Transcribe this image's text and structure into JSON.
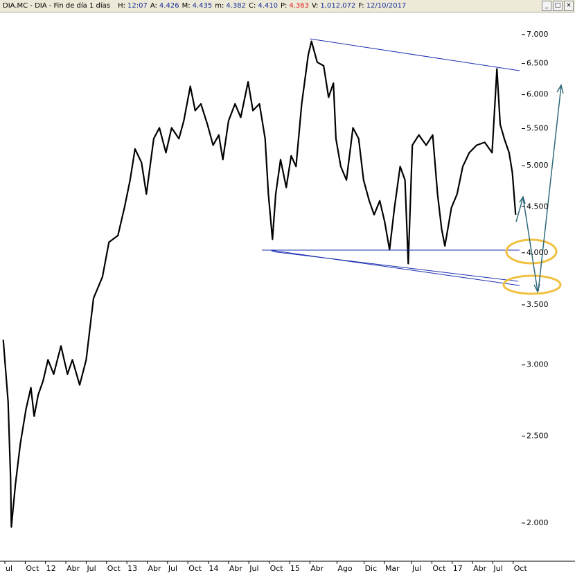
{
  "header": {
    "title": "DIA.MC - DIA - Fin de día 1 días",
    "items": [
      {
        "label": "H:",
        "value": "12:07"
      },
      {
        "label": "A:",
        "value": "4.426"
      },
      {
        "label": "M:",
        "value": "4.435"
      },
      {
        "label": "m:",
        "value": "4.382"
      },
      {
        "label": "C:",
        "value": "4.410"
      },
      {
        "label": "P:",
        "value": "4.363"
      },
      {
        "label": "V:",
        "value": "1,012,072"
      },
      {
        "label": "F:",
        "value": "12/10/2017"
      }
    ]
  },
  "chart_data": {
    "type": "line",
    "log": true,
    "color": "#000000",
    "grid": false,
    "x": [
      2011.48,
      2011.54,
      2011.57,
      2011.58,
      2011.63,
      2011.69,
      2011.76,
      2011.82,
      2011.86,
      2011.91,
      2011.97,
      2012.03,
      2012.1,
      2012.19,
      2012.27,
      2012.33,
      2012.42,
      2012.5,
      2012.59,
      2012.7,
      2012.78,
      2012.89,
      2012.97,
      2013.04,
      2013.1,
      2013.18,
      2013.24,
      2013.33,
      2013.4,
      2013.48,
      2013.55,
      2013.64,
      2013.7,
      2013.78,
      2013.84,
      2013.91,
      2013.99,
      2014.06,
      2014.13,
      2014.18,
      2014.25,
      2014.33,
      2014.4,
      2014.49,
      2014.55,
      2014.63,
      2014.7,
      2014.74,
      2014.79,
      2014.83,
      2014.89,
      2014.96,
      2015.02,
      2015.08,
      2015.15,
      2015.23,
      2015.27,
      2015.34,
      2015.42,
      2015.48,
      2015.54,
      2015.57,
      2015.63,
      2015.7,
      2015.78,
      2015.85,
      2015.91,
      2015.98,
      2016.04,
      2016.11,
      2016.17,
      2016.23,
      2016.29,
      2016.36,
      2016.42,
      2016.46,
      2016.51,
      2016.59,
      2016.68,
      2016.76,
      2016.82,
      2016.87,
      2016.91,
      2016.99,
      2017.06,
      2017.13,
      2017.21,
      2017.3,
      2017.4,
      2017.49,
      2017.55,
      2017.59,
      2017.64,
      2017.7,
      2017.74,
      2017.78
    ],
    "values": [
      3.2,
      2.73,
      2.24,
      1.98,
      2.21,
      2.45,
      2.68,
      2.83,
      2.63,
      2.78,
      2.88,
      3.04,
      2.93,
      3.15,
      2.93,
      3.04,
      2.85,
      3.04,
      3.56,
      3.76,
      4.11,
      4.18,
      4.49,
      4.82,
      5.22,
      5.04,
      4.65,
      5.36,
      5.51,
      5.17,
      5.51,
      5.36,
      5.61,
      6.13,
      5.76,
      5.86,
      5.56,
      5.27,
      5.41,
      5.08,
      5.61,
      5.86,
      5.66,
      6.2,
      5.76,
      5.86,
      5.36,
      4.65,
      4.14,
      4.65,
      5.08,
      4.73,
      5.13,
      4.99,
      5.86,
      6.64,
      6.88,
      6.52,
      6.46,
      5.96,
      6.18,
      5.36,
      4.99,
      4.82,
      5.51,
      5.36,
      4.82,
      4.57,
      4.41,
      4.57,
      4.33,
      4.03,
      4.49,
      4.99,
      4.82,
      3.89,
      5.27,
      5.41,
      5.27,
      5.41,
      4.65,
      4.25,
      4.07,
      4.49,
      4.65,
      4.99,
      5.17,
      5.27,
      5.31,
      5.17,
      6.41,
      5.56,
      5.36,
      5.17,
      4.91,
      4.41
    ],
    "xlim": [
      2011.44,
      2018.51
    ],
    "ylim": [
      1.82,
      7.5
    ],
    "xticks": [
      {
        "value": 2011.5,
        "label": "ul"
      },
      {
        "value": 2011.75,
        "label": "Oct"
      },
      {
        "value": 2012.0,
        "label": "12"
      },
      {
        "value": 2012.25,
        "label": "Abr"
      },
      {
        "value": 2012.5,
        "label": "Jul"
      },
      {
        "value": 2012.75,
        "label": "Oct"
      },
      {
        "value": 2013.0,
        "label": "13"
      },
      {
        "value": 2013.25,
        "label": "Abr"
      },
      {
        "value": 2013.5,
        "label": "Jul"
      },
      {
        "value": 2013.75,
        "label": "Oct"
      },
      {
        "value": 2014.0,
        "label": "14"
      },
      {
        "value": 2014.25,
        "label": "Abr"
      },
      {
        "value": 2014.5,
        "label": "Jul"
      },
      {
        "value": 2014.75,
        "label": "Oct"
      },
      {
        "value": 2015.0,
        "label": "15"
      },
      {
        "value": 2015.25,
        "label": "Abr"
      },
      {
        "value": 2015.583,
        "label": "Ago"
      },
      {
        "value": 2015.917,
        "label": "Dic"
      },
      {
        "value": 2016.167,
        "label": "Mar"
      },
      {
        "value": 2016.5,
        "label": "Jul"
      },
      {
        "value": 2016.75,
        "label": "Oct"
      },
      {
        "value": 2017.0,
        "label": "17"
      },
      {
        "value": 2017.25,
        "label": "Abr"
      },
      {
        "value": 2017.5,
        "label": "Jul"
      },
      {
        "value": 2017.75,
        "label": "Oct"
      }
    ],
    "yticks": [
      {
        "value": 2,
        "label": "2.000"
      },
      {
        "value": 2.5,
        "label": "2.500"
      },
      {
        "value": 3,
        "label": "3.000"
      },
      {
        "value": 3.5,
        "label": "3.500"
      },
      {
        "value": 4,
        "label": "4.000"
      },
      {
        "value": 4.5,
        "label": "4.500"
      },
      {
        "value": 5,
        "label": "5.000"
      },
      {
        "value": 5.5,
        "label": "5.500"
      },
      {
        "value": 6,
        "label": "6.000"
      },
      {
        "value": 6.5,
        "label": "6.500"
      },
      {
        "value": 7,
        "label": "7.000"
      }
    ]
  }
}
